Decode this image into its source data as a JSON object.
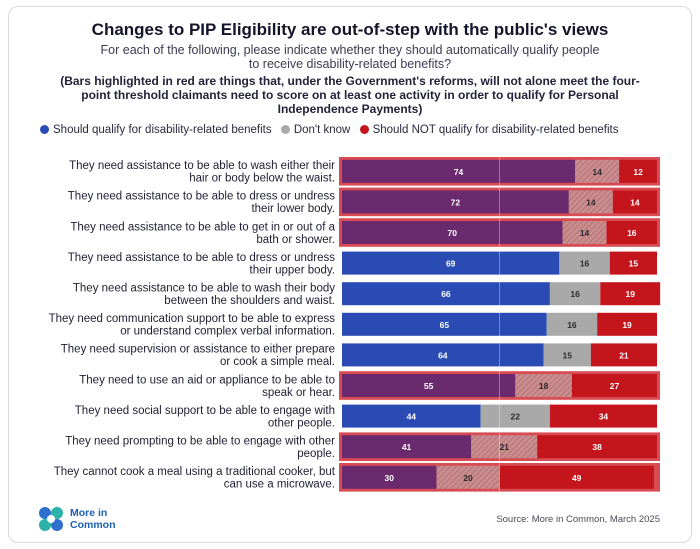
{
  "title": "Changes to PIP Eligibility are out-of-step with the public's views",
  "subtitle": "For each of the following, please indicate whether they should automatically qualify people to receive disability-related benefits?",
  "note": "(Bars highlighted in red are things that, under the Government's reforms, will not alone meet the four-point threshold claimants need to score on at least one activity in order to qualify for Personal Independence Payments)",
  "legend": [
    {
      "label": "Should qualify for disability-related benefits",
      "color": "#2a4bb4"
    },
    {
      "label": "Don't know",
      "color": "#a9a9a9"
    },
    {
      "label": "Should NOT qualify for disability-related benefits",
      "color": "#c5151c"
    }
  ],
  "colors": {
    "qualify": "#2a4bb4",
    "qualify_highlighted": "#6b2a6e",
    "dont_know": "#a9a9a9",
    "not_qualify": "#c5151c",
    "highlight_background": "#d94b52"
  },
  "chart_data": {
    "type": "bar",
    "orientation": "horizontal",
    "stacked": true,
    "xlim": [
      0,
      100
    ],
    "categories": [
      "They need assistance to be able to wash either their hair or body below the waist.",
      "They need assistance to be able to dress or undress their lower body.",
      "They need assistance to be able to get in or out of a bath or shower.",
      "They need assistance to be able to dress or undress their upper body.",
      "They need assistance to be able to wash their body between the shoulders and waist.",
      "They need communication support to be able to express or understand complex verbal information.",
      "They need supervision or assistance to either prepare or cook a simple meal.",
      "They need to use an aid or appliance to be able to speak or hear.",
      "They need social support to be able to engage with other people.",
      "They need prompting to be able to engage with other people.",
      "They cannot cook a meal using a traditional cooker, but can use a microwave."
    ],
    "highlighted": [
      true,
      true,
      true,
      false,
      false,
      false,
      false,
      true,
      false,
      true,
      true
    ],
    "series": [
      {
        "name": "Should qualify for disability-related benefits",
        "values": [
          74,
          72,
          70,
          69,
          66,
          65,
          64,
          55,
          44,
          41,
          30
        ]
      },
      {
        "name": "Don't know",
        "values": [
          14,
          14,
          14,
          16,
          16,
          16,
          15,
          18,
          22,
          21,
          20
        ]
      },
      {
        "name": "Should NOT qualify for disability-related benefits",
        "values": [
          12,
          14,
          16,
          15,
          19,
          19,
          21,
          27,
          34,
          38,
          49
        ]
      }
    ]
  },
  "logo": {
    "line1": "More in",
    "line2": "Common"
  },
  "source": "Source: More in Common, March 2025"
}
